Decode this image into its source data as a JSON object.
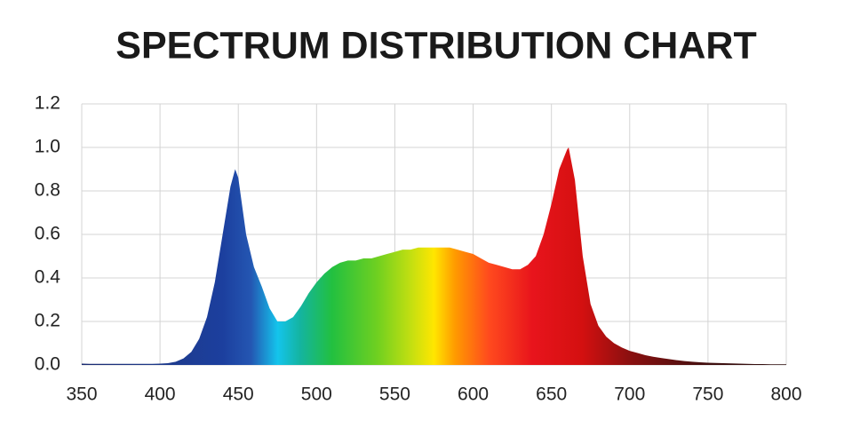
{
  "chart_data": {
    "type": "area",
    "title": "SPECTRUM DISTRIBUTION CHART",
    "x": [
      350,
      355,
      360,
      365,
      370,
      375,
      380,
      385,
      390,
      395,
      400,
      405,
      410,
      415,
      420,
      425,
      430,
      435,
      440,
      445,
      448,
      450,
      455,
      460,
      465,
      470,
      475,
      480,
      485,
      490,
      495,
      500,
      505,
      510,
      515,
      520,
      525,
      530,
      535,
      540,
      545,
      550,
      555,
      560,
      565,
      570,
      575,
      580,
      585,
      590,
      595,
      600,
      605,
      610,
      615,
      620,
      625,
      630,
      635,
      640,
      645,
      650,
      655,
      660,
      661,
      665,
      670,
      675,
      680,
      685,
      690,
      695,
      700,
      705,
      710,
      715,
      720,
      725,
      730,
      735,
      740,
      745,
      750,
      755,
      760,
      765,
      770,
      775,
      780,
      785,
      790,
      795,
      800
    ],
    "values": [
      0.006,
      0.005,
      0.005,
      0.005,
      0.005,
      0.005,
      0.005,
      0.005,
      0.005,
      0.005,
      0.006,
      0.008,
      0.015,
      0.03,
      0.06,
      0.12,
      0.22,
      0.38,
      0.6,
      0.82,
      0.9,
      0.86,
      0.6,
      0.45,
      0.36,
      0.26,
      0.2,
      0.2,
      0.22,
      0.27,
      0.33,
      0.38,
      0.42,
      0.45,
      0.47,
      0.48,
      0.48,
      0.49,
      0.49,
      0.5,
      0.51,
      0.52,
      0.53,
      0.53,
      0.54,
      0.54,
      0.54,
      0.54,
      0.54,
      0.53,
      0.52,
      0.51,
      0.49,
      0.47,
      0.46,
      0.45,
      0.44,
      0.44,
      0.46,
      0.5,
      0.6,
      0.74,
      0.9,
      0.99,
      1.0,
      0.85,
      0.5,
      0.28,
      0.18,
      0.13,
      0.1,
      0.08,
      0.065,
      0.055,
      0.045,
      0.038,
      0.032,
      0.027,
      0.022,
      0.018,
      0.015,
      0.012,
      0.01,
      0.009,
      0.008,
      0.007,
      0.006,
      0.005,
      0.004,
      0.004,
      0.003,
      0.003,
      0.003
    ],
    "xlim": [
      350,
      800
    ],
    "xticks": [
      350,
      400,
      450,
      500,
      550,
      600,
      650,
      700,
      750,
      800
    ],
    "ylim": [
      0,
      1.2
    ],
    "yticks": [
      {
        "value": 0,
        "label": "0.0"
      },
      0.2,
      0.4,
      0.6,
      0.8,
      {
        "value": 1,
        "label": "1.0"
      },
      1.2
    ],
    "grid": true
  }
}
